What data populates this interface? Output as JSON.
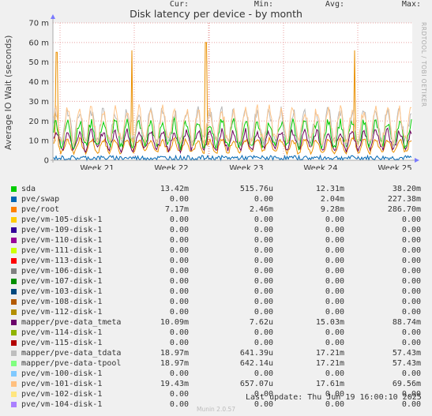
{
  "chart_data": {
    "type": "line",
    "title": "Disk latency per device - by month",
    "ylabel": "Average IO Wait (seconds)",
    "side_credit": "RRDTOOL / TOBI OETIKER",
    "y_ticks": [
      "0",
      "10 m",
      "20 m",
      "30 m",
      "40 m",
      "50 m",
      "60 m",
      "70 m"
    ],
    "y_tick_values": [
      0,
      10,
      20,
      30,
      40,
      50,
      60,
      70
    ],
    "ylim": [
      0,
      70
    ],
    "y_unit": "ms",
    "x_ticks": [
      "Week 21",
      "Week 22",
      "Week 23",
      "Week 24",
      "Week 25"
    ],
    "grid": true,
    "series_plotted": [
      {
        "name": "pve/root",
        "color": "#ea8f00",
        "approx_level_ms": 7.2,
        "spikes_ms": [
          55,
          56,
          60,
          56
        ]
      },
      {
        "name": "mapper/pve-data_tmeta",
        "color": "#6b0059",
        "approx_level_ms": 10.1
      },
      {
        "name": "sda",
        "color": "#00cc00",
        "approx_level_ms": 13.4
      },
      {
        "name": "mapper/pve-data_tdata",
        "color": "#b8b8b8",
        "approx_level_ms": 17.2
      },
      {
        "name": "pve/vm-101-disk-1",
        "color": "#ffc58a",
        "approx_level_ms": 17.6
      },
      {
        "name": "pve/swap",
        "color": "#0066b3",
        "approx_level_ms": 1.0
      }
    ]
  },
  "legend": {
    "headers": {
      "cur": "Cur:",
      "min": "Min:",
      "avg": "Avg:",
      "max": "Max:"
    },
    "rows": [
      {
        "name": "sda",
        "color": "#00cc00",
        "cur": "13.42m",
        "min": "515.76u",
        "avg": "12.31m",
        "max": "38.20m"
      },
      {
        "name": "pve/swap",
        "color": "#0066b3",
        "cur": "0.00",
        "min": "0.00",
        "avg": "2.04m",
        "max": "227.38m"
      },
      {
        "name": "pve/root",
        "color": "#ff8000",
        "cur": "7.17m",
        "min": "2.46m",
        "avg": "9.28m",
        "max": "286.70m"
      },
      {
        "name": "pve/vm-105-disk-1",
        "color": "#ffcc00",
        "cur": "0.00",
        "min": "0.00",
        "avg": "0.00",
        "max": "0.00"
      },
      {
        "name": "pve/vm-109-disk-1",
        "color": "#330099",
        "cur": "0.00",
        "min": "0.00",
        "avg": "0.00",
        "max": "0.00"
      },
      {
        "name": "pve/vm-110-disk-1",
        "color": "#990099",
        "cur": "0.00",
        "min": "0.00",
        "avg": "0.00",
        "max": "0.00"
      },
      {
        "name": "pve/vm-111-disk-1",
        "color": "#ccff00",
        "cur": "0.00",
        "min": "0.00",
        "avg": "0.00",
        "max": "0.00"
      },
      {
        "name": "pve/vm-113-disk-1",
        "color": "#ff0000",
        "cur": "0.00",
        "min": "0.00",
        "avg": "0.00",
        "max": "0.00"
      },
      {
        "name": "pve/vm-106-disk-1",
        "color": "#808080",
        "cur": "0.00",
        "min": "0.00",
        "avg": "0.00",
        "max": "0.00"
      },
      {
        "name": "pve/vm-107-disk-1",
        "color": "#008f00",
        "cur": "0.00",
        "min": "0.00",
        "avg": "0.00",
        "max": "0.00"
      },
      {
        "name": "pve/vm-103-disk-1",
        "color": "#00487d",
        "cur": "0.00",
        "min": "0.00",
        "avg": "0.00",
        "max": "0.00"
      },
      {
        "name": "pve/vm-108-disk-1",
        "color": "#b35a00",
        "cur": "0.00",
        "min": "0.00",
        "avg": "0.00",
        "max": "0.00"
      },
      {
        "name": "pve/vm-112-disk-1",
        "color": "#b38f00",
        "cur": "0.00",
        "min": "0.00",
        "avg": "0.00",
        "max": "0.00"
      },
      {
        "name": "mapper/pve-data_tmeta",
        "color": "#6b006b",
        "cur": "10.09m",
        "min": "7.62u",
        "avg": "15.03m",
        "max": "88.74m"
      },
      {
        "name": "pve/vm-114-disk-1",
        "color": "#8fb300",
        "cur": "0.00",
        "min": "0.00",
        "avg": "0.00",
        "max": "0.00"
      },
      {
        "name": "pve/vm-115-disk-1",
        "color": "#b30000",
        "cur": "0.00",
        "min": "0.00",
        "avg": "0.00",
        "max": "0.00"
      },
      {
        "name": "mapper/pve-data_tdata",
        "color": "#bebebe",
        "cur": "18.97m",
        "min": "641.39u",
        "avg": "17.21m",
        "max": "57.43m"
      },
      {
        "name": "mapper/pve-data-tpool",
        "color": "#80ff80",
        "cur": "18.97m",
        "min": "642.14u",
        "avg": "17.21m",
        "max": "57.43m"
      },
      {
        "name": "pve/vm-100-disk-1",
        "color": "#80c9ff",
        "cur": "0.00",
        "min": "0.00",
        "avg": "0.00",
        "max": "0.00"
      },
      {
        "name": "pve/vm-101-disk-1",
        "color": "#ffc080",
        "cur": "19.43m",
        "min": "657.07u",
        "avg": "17.61m",
        "max": "69.56m"
      },
      {
        "name": "pve/vm-102-disk-1",
        "color": "#ffe680",
        "cur": "0.00",
        "min": "0.00",
        "avg": "0.00",
        "max": "0.00"
      },
      {
        "name": "pve/vm-104-disk-1",
        "color": "#aa80ff",
        "cur": "0.00",
        "min": "0.00",
        "avg": "0.00",
        "max": "0.00"
      }
    ]
  },
  "footer": {
    "last_update": "Last update: Thu Jun 19 16:00:10 2025",
    "version": "Munin 2.0.57"
  }
}
